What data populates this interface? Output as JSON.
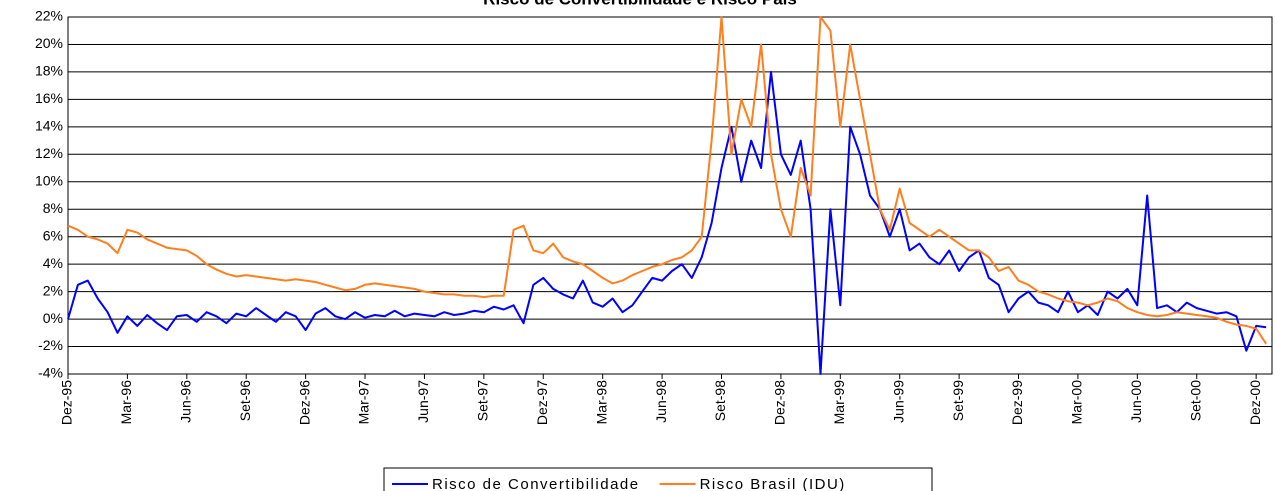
{
  "chart_data": {
    "type": "line",
    "title": "Risco de Convertibilidade e Risco País",
    "x": [
      0,
      0.5,
      1,
      1.5,
      2,
      2.5,
      3,
      3.5,
      4,
      4.5,
      5,
      5.5,
      6,
      6.5,
      7,
      7.5,
      8,
      8.5,
      9,
      9.5,
      10,
      10.5,
      11,
      11.5,
      12,
      12.5,
      13,
      13.5,
      14,
      14.5,
      15,
      15.5,
      16,
      16.5,
      17,
      17.5,
      18,
      18.5,
      19,
      19.5,
      20,
      20.5,
      21,
      21.5,
      22,
      22.5,
      23,
      23.5,
      24,
      24.5,
      25,
      25.5,
      26,
      26.5,
      27,
      27.5,
      28,
      28.5,
      29,
      29.5,
      30,
      30.5,
      31,
      31.5,
      32,
      32.5,
      33,
      33.5,
      34,
      34.5,
      35,
      35.5,
      36,
      36.5,
      37,
      37.5,
      38,
      38.5,
      39,
      39.5,
      40,
      40.5,
      41,
      41.5,
      42,
      42.5,
      43,
      43.5,
      44,
      44.5,
      45,
      45.5,
      46,
      46.5,
      47,
      47.5,
      48,
      48.5,
      49,
      49.5,
      50,
      50.5,
      51,
      51.5,
      52,
      52.5,
      53,
      53.5,
      54,
      54.5,
      55,
      55.5,
      56,
      56.5,
      57,
      57.5,
      58,
      58.5,
      59,
      59.5,
      60,
      60.5
    ],
    "series": [
      {
        "name": "Risco de Convertibilidade",
        "color": "#0000ff",
        "values": [
          0,
          2.5,
          2.8,
          1.5,
          0.5,
          -1.0,
          0.2,
          -0.5,
          0.3,
          -0.3,
          -0.8,
          0.2,
          0.3,
          -0.2,
          0.5,
          0.2,
          -0.3,
          0.4,
          0.2,
          0.8,
          0.3,
          -0.2,
          0.5,
          0.2,
          -0.8,
          0.4,
          0.8,
          0.2,
          0.0,
          0.5,
          0.1,
          0.3,
          0.2,
          0.6,
          0.2,
          0.4,
          0.3,
          0.2,
          0.5,
          0.3,
          0.4,
          0.6,
          0.5,
          0.9,
          0.7,
          1.0,
          -0.3,
          2.5,
          3.0,
          2.2,
          1.8,
          1.5,
          2.8,
          1.2,
          0.9,
          1.5,
          0.5,
          1.0,
          2.0,
          3.0,
          2.8,
          3.5,
          4.0,
          3.0,
          4.5,
          7,
          11,
          14,
          10,
          13,
          11,
          18,
          12,
          10.5,
          13,
          8,
          -4,
          8,
          1,
          14,
          12,
          9,
          8,
          6,
          8,
          5,
          5.5,
          4.5,
          4,
          5,
          3.5,
          4.5,
          5,
          3,
          2.5,
          0.5,
          1.5,
          2,
          1.2,
          1,
          0.5,
          2,
          0.5,
          1,
          0.3,
          2,
          1.5,
          2.2,
          1,
          9,
          0.8,
          1,
          0.5,
          1.2,
          0.8,
          0.6,
          0.4,
          0.5,
          0.2,
          -2.3,
          -0.5,
          -0.6
        ]
      },
      {
        "name": "Risco Brasil (IDU)",
        "color": "#ff7f1e",
        "values": [
          6.8,
          6.5,
          6.0,
          5.8,
          5.5,
          4.8,
          6.5,
          6.3,
          5.8,
          5.5,
          5.2,
          5.1,
          5.0,
          4.6,
          4.0,
          3.6,
          3.3,
          3.1,
          3.2,
          3.1,
          3.0,
          2.9,
          2.8,
          2.9,
          2.8,
          2.7,
          2.5,
          2.3,
          2.1,
          2.2,
          2.5,
          2.6,
          2.5,
          2.4,
          2.3,
          2.2,
          2.0,
          1.9,
          1.8,
          1.8,
          1.7,
          1.7,
          1.6,
          1.7,
          1.7,
          6.5,
          6.8,
          5.0,
          4.8,
          5.5,
          4.5,
          4.2,
          4.0,
          3.5,
          3.0,
          2.6,
          2.8,
          3.2,
          3.5,
          3.8,
          4.0,
          4.3,
          4.5,
          5.0,
          6.0,
          13,
          22,
          12,
          16,
          14,
          20,
          12,
          8,
          6,
          11,
          9,
          22,
          21,
          14,
          20,
          16,
          12,
          8,
          6.5,
          9.5,
          7,
          6.5,
          6.0,
          6.5,
          6.0,
          5.5,
          5.0,
          5.0,
          4.5,
          3.5,
          3.8,
          2.8,
          2.5,
          2.0,
          1.8,
          1.5,
          1.3,
          1.2,
          1.0,
          1.2,
          1.5,
          1.3,
          0.8,
          0.5,
          0.3,
          0.2,
          0.3,
          0.5,
          0.4,
          0.3,
          0.2,
          0.1,
          -0.2,
          -0.4,
          -0.5,
          -0.7,
          -1.8
        ]
      }
    ],
    "xlim": [
      0,
      60.8
    ],
    "xticks": [
      {
        "value": 0,
        "label": "Dez-95"
      },
      {
        "value": 3,
        "label": "Mar-96"
      },
      {
        "value": 6,
        "label": "Jun-96"
      },
      {
        "value": 9,
        "label": "Set-96"
      },
      {
        "value": 12,
        "label": "Dez-96"
      },
      {
        "value": 15,
        "label": "Mar-97"
      },
      {
        "value": 18,
        "label": "Jun-97"
      },
      {
        "value": 21,
        "label": "Set-97"
      },
      {
        "value": 24,
        "label": "Dez-97"
      },
      {
        "value": 27,
        "label": "Mar-98"
      },
      {
        "value": 30,
        "label": "Jun-98"
      },
      {
        "value": 33,
        "label": "Set-98"
      },
      {
        "value": 36,
        "label": "Dez-98"
      },
      {
        "value": 39,
        "label": "Mar-99"
      },
      {
        "value": 42,
        "label": "Jun-99"
      },
      {
        "value": 45,
        "label": "Set-99"
      },
      {
        "value": 48,
        "label": "Dez-99"
      },
      {
        "value": 51,
        "label": "Mar-00"
      },
      {
        "value": 54,
        "label": "Jun-00"
      },
      {
        "value": 57,
        "label": "Set-00"
      },
      {
        "value": 60,
        "label": "Dez-00"
      }
    ],
    "ylim": [
      -4,
      22
    ],
    "yticks": [
      {
        "value": -4,
        "label": "-4%"
      },
      {
        "value": -2,
        "label": "-2%"
      },
      {
        "value": 0,
        "label": "0%"
      },
      {
        "value": 2,
        "label": "2%"
      },
      {
        "value": 4,
        "label": "4%"
      },
      {
        "value": 6,
        "label": "6%"
      },
      {
        "value": 8,
        "label": "8%"
      },
      {
        "value": 10,
        "label": "10%"
      },
      {
        "value": 12,
        "label": "12%"
      },
      {
        "value": 14,
        "label": "14%"
      },
      {
        "value": 16,
        "label": "16%"
      },
      {
        "value": 18,
        "label": "18%"
      },
      {
        "value": 20,
        "label": "20%"
      },
      {
        "value": 22,
        "label": "22%"
      }
    ],
    "grid": true,
    "legend": "bottom"
  }
}
